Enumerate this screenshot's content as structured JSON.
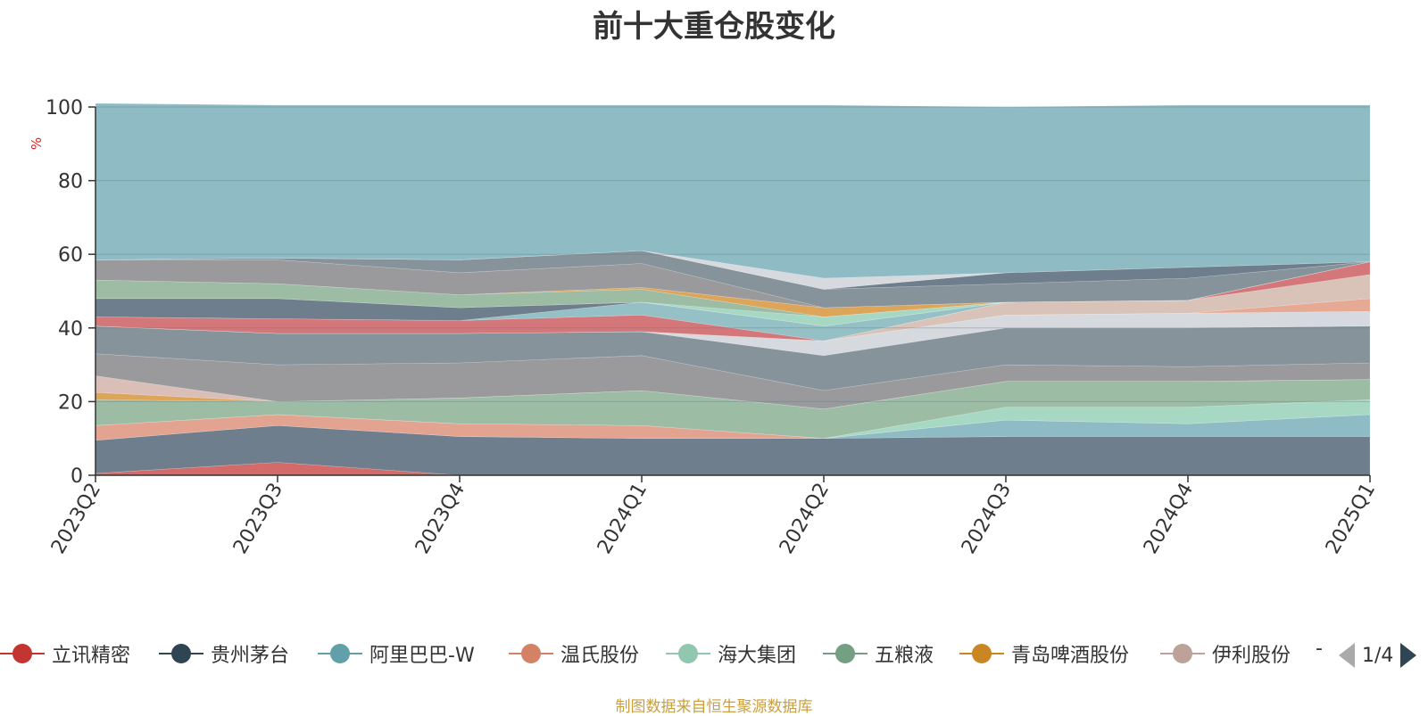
{
  "chart_data": {
    "type": "area",
    "stacked": true,
    "title": "前十大重仓股变化",
    "unit": "%",
    "x": [
      "2023Q2",
      "2023Q3",
      "2023Q4",
      "2024Q1",
      "2024Q2",
      "2024Q3",
      "2024Q4",
      "2025Q1"
    ],
    "ylim": [
      0,
      100
    ],
    "yticks": [
      0,
      20,
      40,
      60,
      80,
      100
    ],
    "grid": true,
    "legend_position": "bottom",
    "series": [
      {
        "name": "立讯精密",
        "color": "#d46a6a",
        "values": [
          0.5,
          3.5,
          0,
          0,
          0,
          0,
          0,
          0
        ]
      },
      {
        "name": "贵州茅台",
        "color": "#6e7e8c",
        "values": [
          9,
          10,
          10.5,
          10,
          10,
          10.5,
          10.5,
          10.5
        ]
      },
      {
        "name": "阿里巴巴-W",
        "color": "#8ebbc4",
        "values": [
          0,
          0,
          0,
          0,
          0,
          4.5,
          3.5,
          6
        ]
      },
      {
        "name": "温氏股份",
        "color": "#e2a491",
        "values": [
          4,
          3,
          3.5,
          3.5,
          0,
          0,
          0,
          0
        ]
      },
      {
        "name": "海大集团",
        "color": "#a6d8c3",
        "values": [
          0,
          0,
          0,
          0,
          0,
          3.5,
          4.5,
          4
        ]
      },
      {
        "name": "五粮液",
        "color": "#9dbca4",
        "values": [
          7,
          3.5,
          7,
          9.5,
          8,
          7,
          7,
          5.5
        ]
      },
      {
        "name": "青岛啤酒股份",
        "color": "#dca55a",
        "values": [
          2,
          0,
          0,
          0,
          0,
          0,
          0,
          0
        ]
      },
      {
        "name": "伊利股份",
        "color": "#d9bfb7",
        "values": [
          4.5,
          0,
          0,
          0,
          0,
          0,
          0,
          0
        ]
      },
      {
        "name": "",
        "color": "#9a9a9d",
        "values": [
          6,
          10,
          9.5,
          9.5,
          5,
          4.5,
          4,
          4.5
        ]
      },
      {
        "name": "",
        "color": "#86939b",
        "values": [
          7.5,
          8.5,
          8,
          6.5,
          9.5,
          10,
          10.5,
          10
        ]
      },
      {
        "name": "",
        "color": "#d6d9de",
        "values": [
          0,
          0,
          0,
          0,
          4,
          3.5,
          4,
          4
        ]
      },
      {
        "name": "",
        "color": "#e6a993",
        "values": [
          0,
          0,
          0,
          0,
          0,
          0,
          0,
          3.5
        ]
      },
      {
        "name": "",
        "color": "#d9c2b8",
        "values": [
          0,
          0,
          0,
          0,
          0,
          3.5,
          3.5,
          6.5
        ]
      },
      {
        "name": "",
        "color": "#d4777a",
        "values": [
          2.5,
          4,
          3.5,
          4.5,
          0,
          0,
          0,
          3.5
        ]
      },
      {
        "name": "",
        "color": "#95c0c6",
        "values": [
          0,
          0,
          0,
          3.5,
          4,
          0,
          0,
          0
        ]
      },
      {
        "name": "",
        "color": "#6e7e8c",
        "values": [
          5,
          5.5,
          3.5,
          0,
          0,
          0,
          0,
          0
        ]
      },
      {
        "name": "",
        "color": "#a6d8c3",
        "values": [
          0,
          0,
          0,
          0,
          2.5,
          0,
          0,
          0
        ]
      },
      {
        "name": "",
        "color": "#9dbca4",
        "values": [
          5,
          4,
          3.5,
          3.5,
          0,
          0,
          0,
          0
        ]
      },
      {
        "name": "",
        "color": "#dca55a",
        "values": [
          0,
          0,
          0,
          0.5,
          2.5,
          0,
          0,
          0
        ]
      },
      {
        "name": "",
        "color": "#9a9a9d",
        "values": [
          5.5,
          6.5,
          6,
          6.5,
          0,
          0,
          0,
          0
        ]
      },
      {
        "name": "",
        "color": "#86939b",
        "values": [
          0,
          0.5,
          3.5,
          3.5,
          5,
          5,
          6,
          0
        ]
      },
      {
        "name": "",
        "color": "#6e7e8c",
        "values": [
          0,
          0,
          0,
          0,
          0,
          3,
          3,
          0
        ]
      },
      {
        "name": "",
        "color": "#d6d9de",
        "values": [
          0,
          0,
          0,
          0,
          3,
          0,
          0,
          0
        ]
      },
      {
        "name": "",
        "color": "#8ebbc4",
        "values": [
          42.5,
          41.5,
          42,
          39.5,
          47,
          45,
          44,
          42.5
        ]
      }
    ]
  },
  "legend": {
    "items": [
      {
        "label": "立讯精密",
        "color": "#c23531"
      },
      {
        "label": "贵州茅台",
        "color": "#2f4554"
      },
      {
        "label": "阿里巴巴-W",
        "color": "#61a0a8"
      },
      {
        "label": "温氏股份",
        "color": "#d48265"
      },
      {
        "label": "海大集团",
        "color": "#91c7ae"
      },
      {
        "label": "五粮液",
        "color": "#749f83"
      },
      {
        "label": "青岛啤酒股份",
        "color": "#ca8622"
      },
      {
        "label": "伊利股份",
        "color": "#bda29a"
      }
    ],
    "more": "-",
    "page": "1/4"
  },
  "footer": "制图数据来自恒生聚源数据库"
}
